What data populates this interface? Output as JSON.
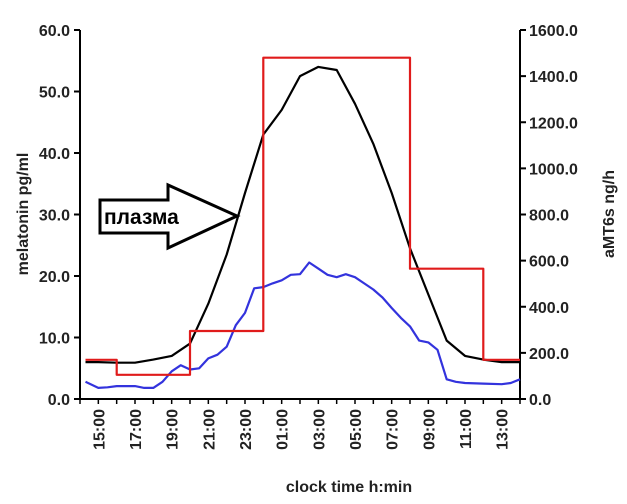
{
  "chart_data": {
    "type": "line",
    "xlabel": "clock time h:min",
    "ylabel_left": "melatonin pg/ml",
    "ylabel_right": "aMT6s ng/h",
    "ylim_left": [
      0,
      60
    ],
    "ylim_right": [
      0,
      1600
    ],
    "yticks_left": [
      "0.0",
      "10.0",
      "20.0",
      "30.0",
      "40.0",
      "50.0",
      "60.0"
    ],
    "yticks_right": [
      "0.0",
      "200.0",
      "400.0",
      "600.0",
      "800.0",
      "1000.0",
      "1200.0",
      "1400.0",
      "1600.0"
    ],
    "x_range_hours": [
      14,
      38
    ],
    "x_ticks": [
      {
        "x": 15,
        "label": "15:00"
      },
      {
        "x": 17,
        "label": "17:00"
      },
      {
        "x": 19,
        "label": "19:00"
      },
      {
        "x": 21,
        "label": "21:00"
      },
      {
        "x": 23,
        "label": "23:00"
      },
      {
        "x": 25,
        "label": "01:00"
      },
      {
        "x": 27,
        "label": "03:00"
      },
      {
        "x": 29,
        "label": "05:00"
      },
      {
        "x": 31,
        "label": "07:00"
      },
      {
        "x": 33,
        "label": "09:00"
      },
      {
        "x": 35,
        "label": "11:00"
      },
      {
        "x": 37,
        "label": "13:00"
      }
    ],
    "series": [
      {
        "color": "#000000",
        "axis": "left",
        "shape": "line",
        "points": [
          [
            14.3,
            6.0
          ],
          [
            15,
            6.0
          ],
          [
            16,
            5.9
          ],
          [
            17,
            5.9
          ],
          [
            18,
            6.4
          ],
          [
            19,
            7.0
          ],
          [
            20,
            9.0
          ],
          [
            21,
            15.5
          ],
          [
            22,
            23.5
          ],
          [
            23,
            33.5
          ],
          [
            24,
            43.0
          ],
          [
            25,
            47.0
          ],
          [
            26,
            52.5
          ],
          [
            27,
            54.0
          ],
          [
            28,
            53.5
          ],
          [
            29,
            48.0
          ],
          [
            30,
            41.5
          ],
          [
            31,
            33.5
          ],
          [
            32,
            24.5
          ],
          [
            33,
            17.0
          ],
          [
            34,
            9.5
          ],
          [
            35,
            7.0
          ],
          [
            36,
            6.4
          ],
          [
            37,
            6.0
          ],
          [
            38,
            6.0
          ]
        ]
      },
      {
        "color": "#3333dd",
        "axis": "left",
        "shape": "line",
        "points": [
          [
            14.3,
            2.8
          ],
          [
            15,
            1.8
          ],
          [
            15.5,
            1.9
          ],
          [
            16,
            2.1
          ],
          [
            17,
            2.1
          ],
          [
            17.5,
            1.8
          ],
          [
            18,
            1.8
          ],
          [
            18.5,
            2.8
          ],
          [
            19,
            4.5
          ],
          [
            19.5,
            5.5
          ],
          [
            20,
            4.8
          ],
          [
            20.5,
            5.0
          ],
          [
            21,
            6.6
          ],
          [
            21.5,
            7.2
          ],
          [
            22,
            8.5
          ],
          [
            22.5,
            12.0
          ],
          [
            23,
            14.0
          ],
          [
            23.5,
            18.0
          ],
          [
            24,
            18.2
          ],
          [
            24.5,
            18.8
          ],
          [
            25,
            19.3
          ],
          [
            25.5,
            20.2
          ],
          [
            26,
            20.3
          ],
          [
            26.5,
            22.2
          ],
          [
            27,
            21.2
          ],
          [
            27.5,
            20.2
          ],
          [
            28,
            19.8
          ],
          [
            28.5,
            20.3
          ],
          [
            29,
            19.8
          ],
          [
            29.5,
            18.8
          ],
          [
            30,
            17.8
          ],
          [
            30.5,
            16.5
          ],
          [
            31,
            14.8
          ],
          [
            31.5,
            13.2
          ],
          [
            32,
            11.8
          ],
          [
            32.5,
            9.5
          ],
          [
            33,
            9.2
          ],
          [
            33.5,
            8.0
          ],
          [
            34,
            3.2
          ],
          [
            34.5,
            2.8
          ],
          [
            35,
            2.6
          ],
          [
            36,
            2.5
          ],
          [
            37,
            2.4
          ],
          [
            37.5,
            2.6
          ],
          [
            38,
            3.2
          ]
        ]
      },
      {
        "color": "#e01b1b",
        "axis": "right",
        "shape": "step",
        "points": [
          [
            14.3,
            170
          ],
          [
            16,
            170
          ],
          [
            16,
            105
          ],
          [
            20,
            105
          ],
          [
            20,
            295
          ],
          [
            24,
            295
          ],
          [
            24,
            1480
          ],
          [
            32,
            1480
          ],
          [
            32,
            565
          ],
          [
            36,
            565
          ],
          [
            36,
            170
          ],
          [
            38,
            170
          ]
        ]
      }
    ],
    "annotations": [
      {
        "text": "плазма",
        "type": "arrow",
        "points_to": "black-line"
      }
    ]
  }
}
